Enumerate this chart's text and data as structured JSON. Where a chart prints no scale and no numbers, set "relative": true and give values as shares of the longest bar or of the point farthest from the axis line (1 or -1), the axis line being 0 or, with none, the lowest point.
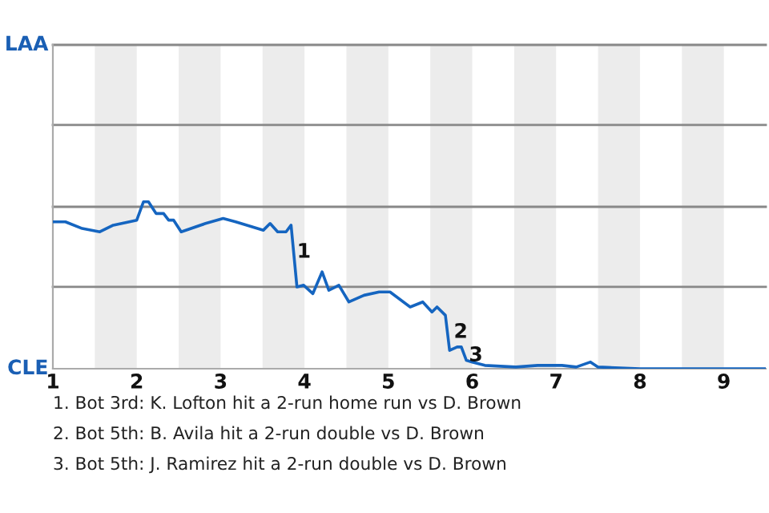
{
  "chart_data": {
    "type": "line",
    "relative": true,
    "x": [
      1.0,
      1.15,
      1.35,
      1.56,
      1.72,
      2.0,
      2.08,
      2.14,
      2.23,
      2.32,
      2.38,
      2.44,
      2.53,
      2.82,
      3.03,
      3.18,
      3.51,
      3.59,
      3.68,
      3.78,
      3.84,
      3.91,
      3.99,
      4.1,
      4.21,
      4.29,
      4.41,
      4.53,
      4.71,
      4.89,
      5.02,
      5.26,
      5.41,
      5.52,
      5.58,
      5.68,
      5.73,
      5.82,
      5.87,
      5.93,
      6.0,
      6.15,
      6.52,
      6.78,
      7.07,
      7.24,
      7.41,
      7.5,
      8.0,
      8.39,
      9.5
    ],
    "series": [
      {
        "color": "#1565c0",
        "values": [
          0.88,
          0.88,
          0.84,
          0.82,
          0.86,
          0.89,
          1,
          1,
          0.93,
          0.93,
          0.89,
          0.89,
          0.82,
          0.87,
          0.9,
          0.88,
          0.83,
          0.87,
          0.82,
          0.82,
          0.86,
          0.49,
          0.5,
          0.45,
          0.58,
          0.47,
          0.5,
          0.4,
          0.44,
          0.46,
          0.46,
          0.37,
          0.4,
          0.34,
          0.37,
          0.32,
          0.11,
          0.13,
          0.13,
          0.05,
          0.04,
          0.02,
          0.01,
          0.02,
          0.02,
          0.01,
          0.04,
          0.01,
          0,
          0,
          0
        ]
      }
    ],
    "xlim": [
      1,
      9.5
    ],
    "xticks": [
      1,
      2,
      3,
      4,
      5,
      6,
      7,
      8,
      9
    ],
    "legend": false,
    "marker": "none",
    "line_style": "solid",
    "ref_lines": [
      {
        "axis": "y",
        "value": 0.49,
        "label": null,
        "color": "#888888"
      },
      {
        "axis": "y",
        "value": 0.97,
        "label": null,
        "color": "#888888"
      },
      {
        "axis": "y",
        "value": 1.46,
        "label": null,
        "color": "#888888"
      },
      {
        "axis": "y",
        "value": 1.94,
        "label": "LAA",
        "color": "#888888"
      }
    ],
    "bands": [
      {
        "axis": "x",
        "from": 1.5,
        "to": 2,
        "color": "#ececec"
      },
      {
        "axis": "x",
        "from": 2.5,
        "to": 3,
        "color": "#ececec"
      },
      {
        "axis": "x",
        "from": 3.5,
        "to": 4,
        "color": "#ececec"
      },
      {
        "axis": "x",
        "from": 4.5,
        "to": 5,
        "color": "#ececec"
      },
      {
        "axis": "x",
        "from": 5.5,
        "to": 6,
        "color": "#ececec"
      },
      {
        "axis": "x",
        "from": 6.5,
        "to": 7,
        "color": "#ececec"
      },
      {
        "axis": "x",
        "from": 7.5,
        "to": 8,
        "color": "#ececec"
      },
      {
        "axis": "x",
        "from": 8.5,
        "to": 9,
        "color": "#ececec"
      }
    ],
    "annotations": [
      "CLE",
      {
        "text": "1",
        "x": 3.91,
        "y": 0.64
      },
      {
        "text": "2",
        "x": 5.78,
        "y": 0.16
      },
      {
        "text": "3",
        "x": 5.96,
        "y": 0.02
      },
      "1. Bot 3rd: K. Lofton hit a 2-run home run vs D. Brown",
      "2. Bot 5th: B. Avila hit a 2-run double vs D. Brown",
      "3. Bot 5th: J. Ramirez hit a 2-run double vs D. Brown"
    ]
  }
}
